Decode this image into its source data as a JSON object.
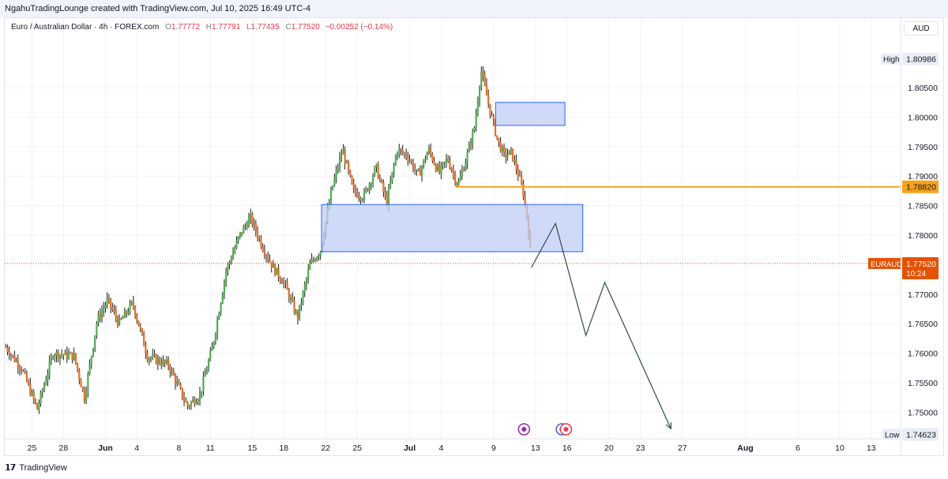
{
  "header": {
    "credit": "NgahuTradingLounge created with TradingView.com, Jul 10, 2025 16:49 UTC-4"
  },
  "legend": {
    "symbol": "Euro / Australian Dollar · 4h · FOREX.com",
    "open_label": "O",
    "open": "1.77772",
    "high_label": "H",
    "high": "1.77791",
    "low_label": "L",
    "low": "1.77435",
    "close_label": "C",
    "close": "1.77520",
    "change": "−0.00252 (−0.14%)"
  },
  "currency_button": "AUD",
  "footer": {
    "brand": "TradingView"
  },
  "colors": {
    "up": "#26a69a",
    "up_candle": "#4caf50",
    "down": "#f7525f",
    "down_candle": "#ef6c1e",
    "zone_fill": "#bfcdf5",
    "zone_border": "#2962ff",
    "level": "#f7a21b",
    "price_tag": "#e65100",
    "projection": "#2f4a4a"
  },
  "chart_data": {
    "type": "candlestick",
    "timeframe": "4h",
    "symbol": "EURAUD",
    "y_axis": {
      "ticks": [
        "1.80500",
        "1.80000",
        "1.79500",
        "1.79000",
        "1.78500",
        "1.78000",
        "1.77000",
        "1.76500",
        "1.76000",
        "1.75500",
        "1.75000"
      ],
      "range": [
        1.7455,
        1.8125
      ]
    },
    "x_axis": {
      "ticks": [
        {
          "label": "25",
          "day": 0
        },
        {
          "label": "28",
          "day": 3
        },
        {
          "label": "Jun",
          "day": 7
        },
        {
          "label": "4",
          "day": 10
        },
        {
          "label": "8",
          "day": 14
        },
        {
          "label": "11",
          "day": 17
        },
        {
          "label": "15",
          "day": 21
        },
        {
          "label": "18",
          "day": 24
        },
        {
          "label": "22",
          "day": 28
        },
        {
          "label": "25",
          "day": 31
        },
        {
          "label": "Jul",
          "day": 36
        },
        {
          "label": "4",
          "day": 39
        },
        {
          "label": "9",
          "day": 44
        },
        {
          "label": "13",
          "day": 48
        },
        {
          "label": "16",
          "day": 51
        },
        {
          "label": "20",
          "day": 55
        },
        {
          "label": "23",
          "day": 58
        },
        {
          "label": "27",
          "day": 62
        },
        {
          "label": "Aug",
          "day": 68
        },
        {
          "label": "6",
          "day": 73
        },
        {
          "label": "10",
          "day": 77
        },
        {
          "label": "13",
          "day": 80
        }
      ],
      "range": [
        -2.6,
        82.8
      ]
    },
    "anchors": [
      {
        "day": -2.5,
        "price": 1.761
      },
      {
        "day": -1,
        "price": 1.7575
      },
      {
        "day": 0.5,
        "price": 1.7505
      },
      {
        "day": 2,
        "price": 1.76
      },
      {
        "day": 4,
        "price": 1.7595
      },
      {
        "day": 5,
        "price": 1.7525
      },
      {
        "day": 6.2,
        "price": 1.7655
      },
      {
        "day": 7.2,
        "price": 1.769
      },
      {
        "day": 8.3,
        "price": 1.765
      },
      {
        "day": 9.6,
        "price": 1.7685
      },
      {
        "day": 11,
        "price": 1.7595
      },
      {
        "day": 13,
        "price": 1.758
      },
      {
        "day": 14.8,
        "price": 1.751
      },
      {
        "day": 16,
        "price": 1.753
      },
      {
        "day": 17.2,
        "price": 1.761
      },
      {
        "day": 18.5,
        "price": 1.774
      },
      {
        "day": 19.8,
        "price": 1.78
      },
      {
        "day": 20.8,
        "price": 1.783
      },
      {
        "day": 22,
        "price": 1.778
      },
      {
        "day": 23,
        "price": 1.7745
      },
      {
        "day": 24,
        "price": 1.772
      },
      {
        "day": 25.3,
        "price": 1.766
      },
      {
        "day": 26.5,
        "price": 1.775
      },
      {
        "day": 27.5,
        "price": 1.7775
      },
      {
        "day": 28.6,
        "price": 1.788
      },
      {
        "day": 29.6,
        "price": 1.7945
      },
      {
        "day": 30.6,
        "price": 1.7875
      },
      {
        "day": 31.6,
        "price": 1.7865
      },
      {
        "day": 32.8,
        "price": 1.7915
      },
      {
        "day": 33.8,
        "price": 1.7855
      },
      {
        "day": 34.8,
        "price": 1.7945
      },
      {
        "day": 35.8,
        "price": 1.7935
      },
      {
        "day": 36.8,
        "price": 1.79
      },
      {
        "day": 37.8,
        "price": 1.7945
      },
      {
        "day": 38.8,
        "price": 1.7905
      },
      {
        "day": 39.6,
        "price": 1.793
      },
      {
        "day": 40.6,
        "price": 1.7885
      },
      {
        "day": 41.4,
        "price": 1.793
      },
      {
        "day": 42.2,
        "price": 1.7985
      },
      {
        "day": 42.8,
        "price": 1.808
      },
      {
        "day": 43.6,
        "price": 1.8015
      },
      {
        "day": 44.4,
        "price": 1.796
      },
      {
        "day": 45,
        "price": 1.7935
      },
      {
        "day": 45.7,
        "price": 1.794
      },
      {
        "day": 46.4,
        "price": 1.79
      },
      {
        "day": 46.8,
        "price": 1.7875
      },
      {
        "day": 47.3,
        "price": 1.7815
      },
      {
        "day": 47.6,
        "price": 1.7752
      }
    ],
    "extremes": {
      "high": 1.80986,
      "low": 1.74623
    },
    "labels": {
      "high": "High",
      "high_value": "1.80986",
      "low": "Low",
      "low_value": "1.74623"
    },
    "zones": [
      {
        "name": "upper-supply-zone",
        "x1_day": 44.2,
        "x2_day": 50.8,
        "y_top": 1.8025,
        "y_bottom": 1.7986
      },
      {
        "name": "lower-demand-zone",
        "x1_day": 27.6,
        "x2_day": 52.5,
        "y_top": 1.7852,
        "y_bottom": 1.7772
      }
    ],
    "level": {
      "price": 1.7882,
      "label": "1.78820",
      "from_day": 40.4
    },
    "current_price": {
      "symbol": "EURAUD",
      "price": 1.7752,
      "label": "1.77520",
      "countdown": "10:24"
    },
    "projection": [
      {
        "day": 47.6,
        "price": 1.7745
      },
      {
        "day": 49.9,
        "price": 1.782
      },
      {
        "day": 52.8,
        "price": 1.763
      },
      {
        "day": 54.6,
        "price": 1.772
      },
      {
        "day": 60.9,
        "price": 1.7472
      }
    ],
    "event_icons": [
      {
        "name": "lightning-event-icon",
        "day": 46.9,
        "color": "#9c27b0"
      },
      {
        "name": "flag-event-icon-1",
        "day": 50.5,
        "color": "#2962ff"
      },
      {
        "name": "flag-event-icon-2",
        "day": 50.9,
        "color": "#f23645"
      }
    ]
  }
}
